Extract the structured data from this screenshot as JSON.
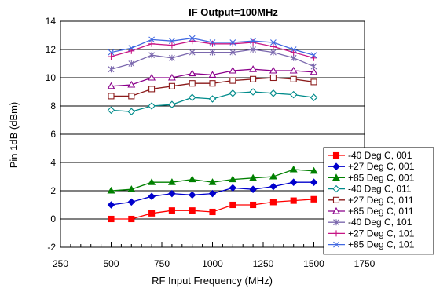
{
  "chart_data": {
    "type": "line",
    "title": "IF Output=100MHz",
    "xlabel": "RF Input Frequency (MHz)",
    "ylabel": "Pin 1dB (dBm)",
    "xlim": [
      250,
      1750
    ],
    "ylim": [
      -2,
      14
    ],
    "xticks": [
      250,
      500,
      750,
      1000,
      1250,
      1500,
      1750
    ],
    "yticks": [
      -2,
      0,
      2,
      4,
      6,
      8,
      10,
      12,
      14
    ],
    "grid": "horizontal",
    "legend_position": "right",
    "x": [
      500,
      600,
      700,
      800,
      900,
      1000,
      1100,
      1200,
      1300,
      1400,
      1500
    ],
    "series": [
      {
        "name": "-40 Deg C, 001",
        "color": "#ff0000",
        "marker": "square-filled",
        "values": [
          0.0,
          0.0,
          0.4,
          0.6,
          0.6,
          0.5,
          1.0,
          1.0,
          1.2,
          1.3,
          1.4
        ]
      },
      {
        "name": "+27 Deg C, 001",
        "color": "#0000cc",
        "marker": "diamond-filled",
        "values": [
          1.0,
          1.2,
          1.6,
          1.8,
          1.7,
          1.8,
          2.2,
          2.1,
          2.3,
          2.6,
          2.6
        ]
      },
      {
        "name": "+85 Deg C, 001",
        "color": "#008000",
        "marker": "triangle-filled",
        "values": [
          2.0,
          2.1,
          2.6,
          2.6,
          2.8,
          2.6,
          2.8,
          2.9,
          3.0,
          3.5,
          3.4
        ]
      },
      {
        "name": "-40 Deg C, 011",
        "color": "#008b8b",
        "marker": "diamond-open",
        "values": [
          7.7,
          7.6,
          8.0,
          8.1,
          8.6,
          8.5,
          8.9,
          9.0,
          8.9,
          8.8,
          8.6
        ]
      },
      {
        "name": "+27 Deg C, 011",
        "color": "#8b1a1a",
        "marker": "square-open",
        "values": [
          8.7,
          8.7,
          9.2,
          9.4,
          9.6,
          9.6,
          9.8,
          9.9,
          10.0,
          9.9,
          9.7
        ]
      },
      {
        "name": "+85 Deg C, 011",
        "color": "#8b008b",
        "marker": "triangle-open",
        "values": [
          9.4,
          9.5,
          10.0,
          10.0,
          10.3,
          10.2,
          10.5,
          10.6,
          10.5,
          10.5,
          10.4
        ]
      },
      {
        "name": "-40 Deg C, 101",
        "color": "#7b68ae",
        "marker": "star",
        "values": [
          10.6,
          11.0,
          11.6,
          11.4,
          11.8,
          11.8,
          11.8,
          12.0,
          11.8,
          11.4,
          10.8
        ]
      },
      {
        "name": "+27 Deg C, 101",
        "color": "#c71585",
        "marker": "plus",
        "values": [
          11.5,
          11.9,
          12.4,
          12.3,
          12.6,
          12.4,
          12.4,
          12.5,
          12.2,
          11.8,
          11.4
        ]
      },
      {
        "name": "+85 Deg C, 101",
        "color": "#4169e1",
        "marker": "x",
        "values": [
          11.8,
          12.1,
          12.7,
          12.6,
          12.8,
          12.5,
          12.5,
          12.6,
          12.5,
          12.0,
          11.6
        ]
      }
    ]
  }
}
